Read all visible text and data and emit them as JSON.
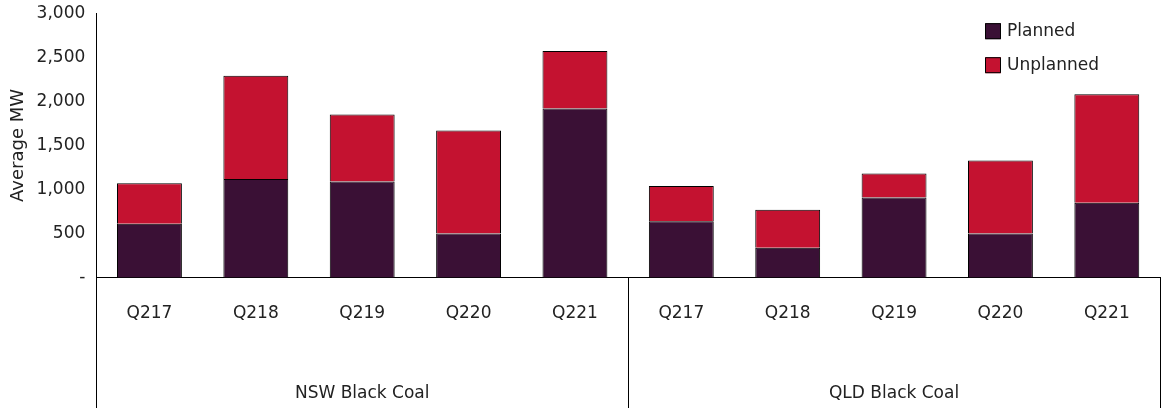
{
  "chart_data": {
    "type": "bar",
    "stacked": true,
    "ylabel": "Average MW",
    "categories": [
      "Q217",
      "Q218",
      "Q219",
      "Q220",
      "Q221",
      "Q217",
      "Q218",
      "Q219",
      "Q220",
      "Q221"
    ],
    "series": [
      {
        "name": "Planned",
        "color": "#3a1035",
        "values": [
          610,
          1120,
          1090,
          500,
          1920,
          640,
          340,
          910,
          500,
          850
        ]
      },
      {
        "name": "Unplanned",
        "color": "#c41230",
        "values": [
          460,
          1170,
          760,
          1170,
          650,
          400,
          430,
          270,
          830,
          1230
        ]
      }
    ],
    "ylim": [
      0,
      3000
    ],
    "yticks": [
      {
        "value": 0,
        "label": "-"
      },
      {
        "value": 500,
        "label": "500"
      },
      {
        "value": 1000,
        "label": "1,000"
      },
      {
        "value": 1500,
        "label": "1,500"
      },
      {
        "value": 2000,
        "label": "2,000"
      },
      {
        "value": 2500,
        "label": "2,500"
      },
      {
        "value": 3000,
        "label": "3,000"
      }
    ],
    "grid": false,
    "legend": "top right",
    "annotations": [
      "NSW Black Coal",
      "QLD Black Coal"
    ]
  }
}
